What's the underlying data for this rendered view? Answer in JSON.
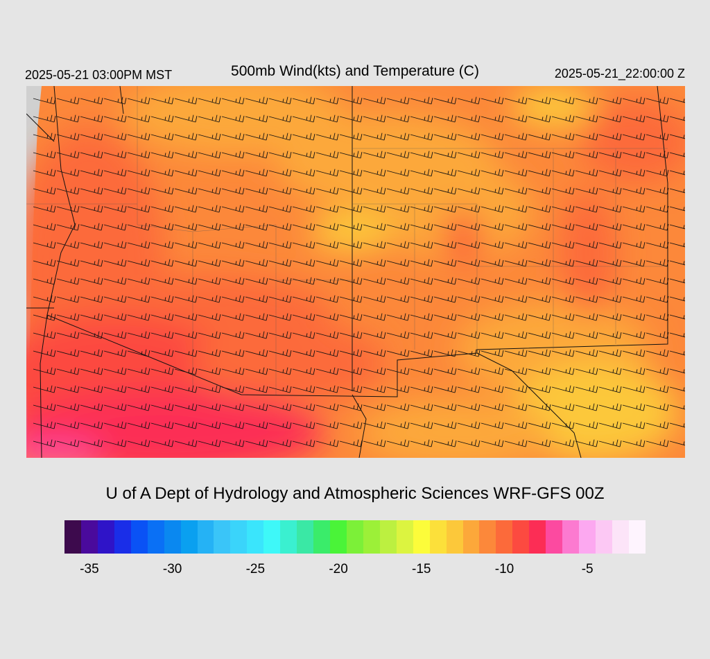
{
  "header": {
    "valid_time": "2025-05-21 03:00PM MST",
    "title": "500mb Wind(kts) and Temperature (C)",
    "init_time": "2025-05-21_22:00:00 Z"
  },
  "credit": "U of A Dept of Hydrology and Atmospheric Sciences WRF-GFS 00Z",
  "colorbar": {
    "colors": [
      "#3d0a4d",
      "#4a0a9c",
      "#2f14c8",
      "#1a2ee8",
      "#0a52f5",
      "#0a70f5",
      "#0a88f0",
      "#0aa0f0",
      "#25b2f5",
      "#3ac5f8",
      "#3ad4fa",
      "#3ae5fc",
      "#3ef8f8",
      "#3af0d0",
      "#3ae8a5",
      "#3aec6a",
      "#4af438",
      "#7cf038",
      "#9cf038",
      "#bcf040",
      "#dcf440",
      "#fcfc3a",
      "#fce03a",
      "#fcc83a",
      "#fca83a",
      "#fc883a",
      "#fc6a3a",
      "#fc4a40",
      "#fc2d55",
      "#fc4aa0",
      "#fc7ad0",
      "#fca8f0",
      "#fcc8f4",
      "#fce4f8",
      "#fef4fe"
    ],
    "tick_labels": [
      "-35",
      "-30",
      "-25",
      "-20",
      "-15",
      "-10",
      "-5"
    ],
    "tick_values": [
      -35,
      -30,
      -25,
      -20,
      -15,
      -10,
      -5
    ],
    "min": -36,
    "max": -1
  },
  "map": {
    "variable": "500mb temperature (C) with wind barbs (kts)",
    "temperature_range_c": [
      -12,
      -5
    ],
    "background_color": "#fc883a"
  }
}
